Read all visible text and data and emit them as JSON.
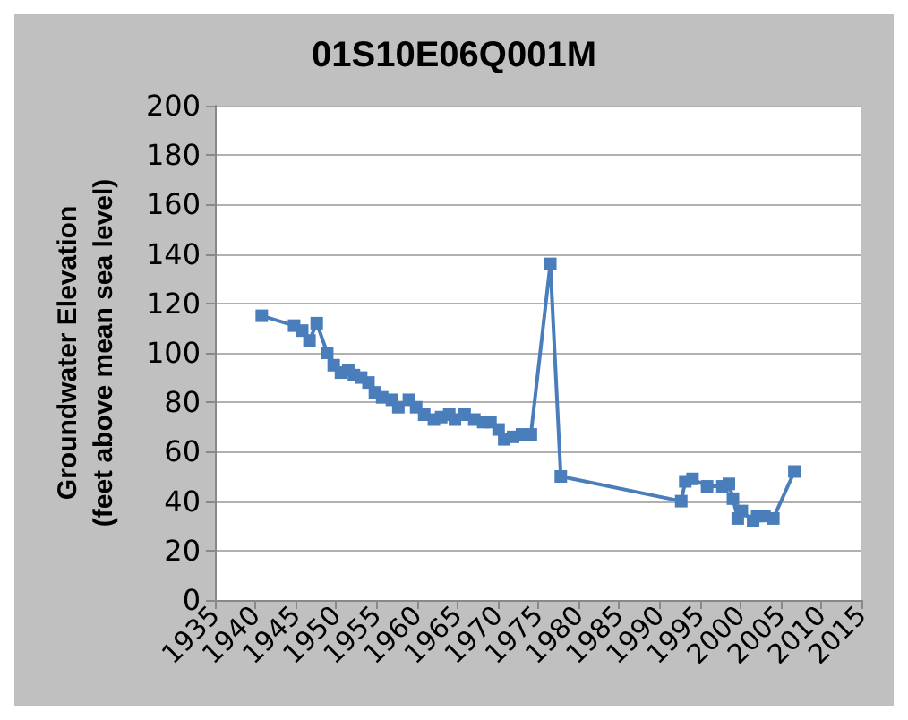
{
  "chart_data": {
    "type": "line",
    "title": "01S10E06Q001M",
    "ylabel": "Groundwater Elevation\n(feet above mean sea level)",
    "x": [
      1940.8,
      1944.8,
      1945.8,
      1946.7,
      1947.6,
      1948.9,
      1949.7,
      1950.6,
      1951.5,
      1952.2,
      1953.1,
      1954.0,
      1954.8,
      1955.7,
      1956.9,
      1957.7,
      1959.0,
      1959.9,
      1960.9,
      1962.1,
      1963.0,
      1964.0,
      1964.7,
      1965.9,
      1967.1,
      1968.2,
      1969.1,
      1970.1,
      1970.8,
      1971.9,
      1973.0,
      1974.1,
      1976.5,
      1977.8,
      1992.7,
      1993.2,
      1994.1,
      1995.9,
      1997.8,
      1998.6,
      1999.1,
      1999.7,
      2000.2,
      2001.6,
      2002.1,
      2003.0,
      2004.1,
      2006.7
    ],
    "series": [
      {
        "color": "#4a7ebb",
        "values": [
          115,
          111,
          109,
          105,
          112,
          100,
          95,
          92,
          93,
          91,
          90,
          88,
          84,
          82,
          81,
          78,
          81,
          78,
          75,
          73,
          74,
          75,
          73,
          75,
          73,
          72,
          72,
          69,
          65,
          66,
          67,
          67,
          136,
          50,
          40,
          48,
          49,
          46,
          46,
          47,
          41,
          33,
          36,
          32,
          34,
          34,
          33,
          52
        ]
      }
    ],
    "xlim": [
      1935,
      2015
    ],
    "xticks": [
      1935,
      1940,
      1945,
      1950,
      1955,
      1960,
      1965,
      1970,
      1975,
      1980,
      1985,
      1990,
      1995,
      2000,
      2005,
      2010,
      2015
    ],
    "ylim": [
      0,
      200
    ],
    "yticks": [
      0,
      20,
      40,
      60,
      80,
      100,
      120,
      140,
      160,
      180,
      200
    ],
    "grid": "y",
    "marker": "square",
    "line_style": "solid"
  }
}
